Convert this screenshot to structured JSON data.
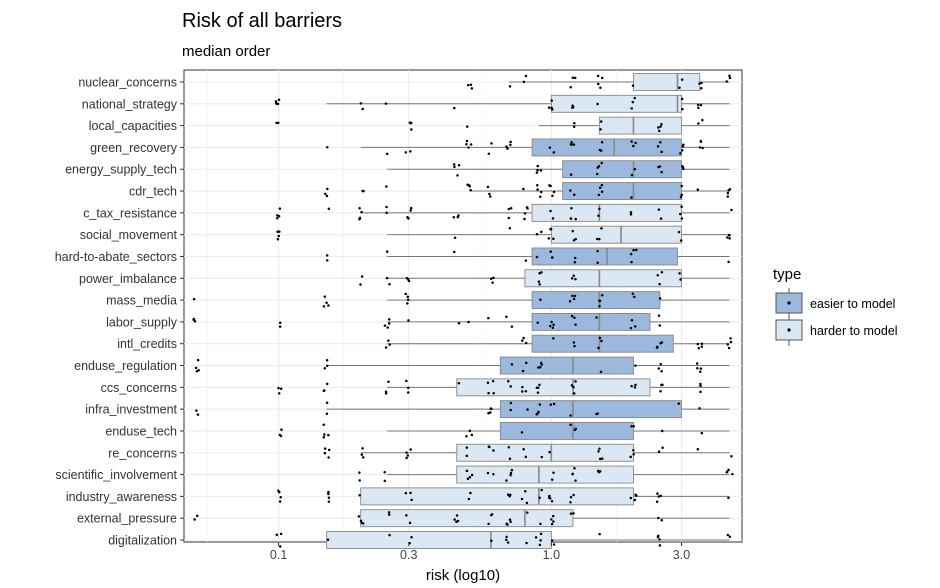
{
  "chart_data": {
    "type": "boxplot",
    "title": "Risk of all barriers",
    "subtitle": "median order",
    "xlabel": "risk (log10)",
    "ylabel": "",
    "x_scale": "log10",
    "xlim": [
      0.045,
      5.0
    ],
    "x_ticks": [
      0.1,
      0.3,
      1.0,
      3.0
    ],
    "x_tick_labels": [
      "0.1",
      "0.3",
      "1.0",
      "3.0"
    ],
    "grid": true,
    "legend": {
      "title": "type",
      "position": "right",
      "entries": [
        {
          "label": "easier to model",
          "color": "#9db8dd"
        },
        {
          "label": "harder to model",
          "color": "#dbe8f4"
        }
      ]
    },
    "categories": [
      {
        "name": "nuclear_concerns",
        "type": "harder to model",
        "min": 0.7,
        "q1": 2.0,
        "median": 2.9,
        "q3": 3.5,
        "max": 4.5
      },
      {
        "name": "national_strategy",
        "type": "harder to model",
        "min": 0.15,
        "q1": 1.0,
        "median": 2.9,
        "q3": 3.0,
        "max": 4.5
      },
      {
        "name": "local_capacities",
        "type": "harder to model",
        "min": 0.9,
        "q1": 1.5,
        "median": 2.0,
        "q3": 3.0,
        "max": 4.5
      },
      {
        "name": "green_recovery",
        "type": "easier to model",
        "min": 0.2,
        "q1": 0.85,
        "median": 1.7,
        "q3": 3.0,
        "max": 4.5
      },
      {
        "name": "energy_supply_tech",
        "type": "easier to model",
        "min": 0.25,
        "q1": 1.1,
        "median": 2.0,
        "q3": 3.0,
        "max": 4.5
      },
      {
        "name": "cdr_tech",
        "type": "easier to model",
        "min": 0.5,
        "q1": 1.1,
        "median": 2.0,
        "q3": 3.0,
        "max": 4.5
      },
      {
        "name": "c_tax_resistance",
        "type": "harder to model",
        "min": 0.2,
        "q1": 0.85,
        "median": 1.5,
        "q3": 3.0,
        "max": 4.5
      },
      {
        "name": "social_movement",
        "type": "harder to model",
        "min": 0.25,
        "q1": 1.0,
        "median": 1.8,
        "q3": 3.0,
        "max": 4.5
      },
      {
        "name": "hard-to-abate_sectors",
        "type": "easier to model",
        "min": 0.25,
        "q1": 0.85,
        "median": 1.6,
        "q3": 2.9,
        "max": 4.5
      },
      {
        "name": "power_imbalance",
        "type": "harder to model",
        "min": 0.25,
        "q1": 0.8,
        "median": 1.5,
        "q3": 3.0,
        "max": 4.5
      },
      {
        "name": "mass_media",
        "type": "easier to model",
        "min": 0.25,
        "q1": 0.85,
        "median": 1.5,
        "q3": 2.5,
        "max": 4.5
      },
      {
        "name": "labor_supply",
        "type": "easier to model",
        "min": 0.25,
        "q1": 0.85,
        "median": 1.5,
        "q3": 2.3,
        "max": 4.5
      },
      {
        "name": "intl_credits",
        "type": "easier to model",
        "min": 0.25,
        "q1": 0.85,
        "median": 1.5,
        "q3": 2.8,
        "max": 4.5
      },
      {
        "name": "enduse_regulation",
        "type": "easier to model",
        "min": 0.15,
        "q1": 0.65,
        "median": 1.2,
        "q3": 2.0,
        "max": 4.5
      },
      {
        "name": "ccs_concerns",
        "type": "harder to model",
        "min": 0.25,
        "q1": 0.45,
        "median": 1.2,
        "q3": 2.3,
        "max": 4.5
      },
      {
        "name": "infra_investment",
        "type": "easier to model",
        "min": 0.15,
        "q1": 0.65,
        "median": 1.2,
        "q3": 3.0,
        "max": 4.5
      },
      {
        "name": "enduse_tech",
        "type": "easier to model",
        "min": 0.25,
        "q1": 0.65,
        "median": 1.2,
        "q3": 2.0,
        "max": 4.5
      },
      {
        "name": "re_concerns",
        "type": "harder to model",
        "min": 0.2,
        "q1": 0.45,
        "median": 1.0,
        "q3": 2.0,
        "max": 4.5
      },
      {
        "name": "scientific_involvement",
        "type": "harder to model",
        "min": 0.25,
        "q1": 0.45,
        "median": 0.9,
        "q3": 2.0,
        "max": 4.5
      },
      {
        "name": "industry_awareness",
        "type": "harder to model",
        "min": 0.2,
        "q1": 0.2,
        "median": 0.9,
        "q3": 2.0,
        "max": 4.5
      },
      {
        "name": "external_pressure",
        "type": "harder to model",
        "min": 0.2,
        "q1": 0.2,
        "median": 0.8,
        "q3": 1.2,
        "max": 4.5
      },
      {
        "name": "digitalization",
        "type": "harder to model",
        "min": 0.15,
        "q1": 0.15,
        "median": 0.6,
        "q3": 1.0,
        "max": 4.5
      }
    ]
  }
}
